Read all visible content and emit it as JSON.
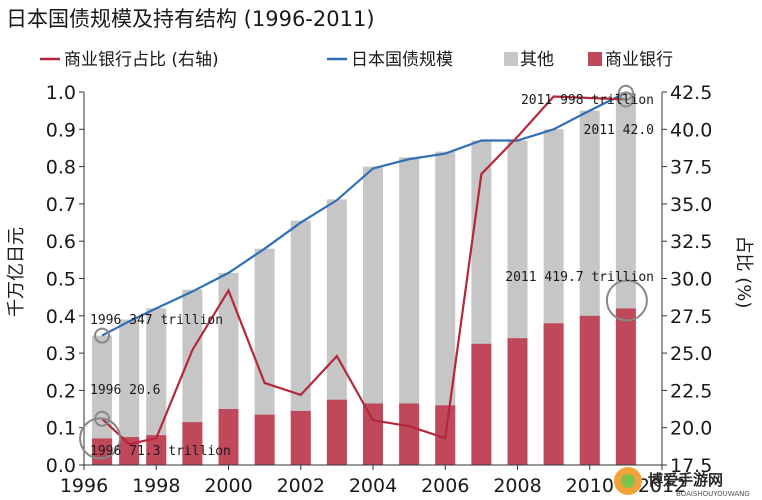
{
  "chart_data": {
    "type": "bar",
    "title": "日本国债规模及持有结构 (1996-2011)",
    "ylabel": "千万亿日元",
    "y2label": "占比 (%)",
    "ylim": [
      0,
      1.0
    ],
    "y2lim": [
      17.5,
      42.5
    ],
    "yticks": [
      "0.0",
      "0.1",
      "0.2",
      "0.3",
      "0.4",
      "0.5",
      "0.6",
      "0.7",
      "0.8",
      "0.9",
      "1.0"
    ],
    "y2ticks": [
      "17.5",
      "20.0",
      "22.5",
      "25.0",
      "27.5",
      "30.0",
      "32.5",
      "35.0",
      "37.5",
      "40.0",
      "42.5"
    ],
    "xticks": [
      "1996",
      "1998",
      "2000",
      "2002",
      "2004",
      "2006",
      "2008",
      "2010",
      "2012"
    ],
    "x": [
      1996.5,
      1997.25,
      1998,
      1999,
      2000,
      2001,
      2002,
      2003,
      2004,
      2005,
      2006,
      2007,
      2008,
      2009,
      2010,
      2011
    ],
    "legend": [
      {
        "name": "商业银行占比 (右轴)",
        "type": "line",
        "color": "#b5283c"
      },
      {
        "name": "日本国债规模",
        "type": "line",
        "color": "#2f6fb5"
      },
      {
        "name": "其他",
        "type": "bar",
        "color": "#c6c6c6"
      },
      {
        "name": "商业银行",
        "type": "bar",
        "color": "#c0485b"
      }
    ],
    "series": [
      {
        "name": "其他",
        "type": "bar",
        "color": "#c6c6c6",
        "values": [
          0.347,
          0.39,
          0.42,
          0.47,
          0.515,
          0.58,
          0.655,
          0.712,
          0.8,
          0.825,
          0.84,
          0.87,
          0.87,
          0.9,
          0.95,
          0.998
        ]
      },
      {
        "name": "商业银行",
        "type": "bar",
        "color": "#c0485b",
        "values": [
          0.0713,
          0.075,
          0.08,
          0.115,
          0.15,
          0.135,
          0.145,
          0.175,
          0.165,
          0.165,
          0.16,
          0.325,
          0.34,
          0.38,
          0.4,
          0.4197
        ]
      },
      {
        "name": "日本国债规模",
        "type": "line",
        "axis": "left",
        "color": "#2f6fb5",
        "values": [
          0.347,
          0.385,
          0.42,
          0.465,
          0.515,
          0.58,
          0.65,
          0.71,
          0.795,
          0.82,
          0.835,
          0.87,
          0.87,
          0.9,
          0.95,
          0.998
        ]
      },
      {
        "name": "商业银行占比 (右轴)",
        "type": "line",
        "axis": "right",
        "color": "#b5283c",
        "values": [
          20.6,
          18.9,
          19.3,
          25.2,
          29.2,
          23.0,
          22.2,
          24.8,
          20.5,
          20.1,
          19.3,
          37.0,
          39.5,
          42.2,
          42.1,
          42.0
        ]
      }
    ],
    "annotations": [
      "1996 347 trillion",
      "1996 20.6",
      "1996 71.3 trillion",
      "2011 998 trillion",
      "2011 42.0",
      "2011 419.7 trillion"
    ]
  },
  "watermark": {
    "text": "博爱手游网",
    "sub": "BOAISHOUYOUWANG"
  }
}
